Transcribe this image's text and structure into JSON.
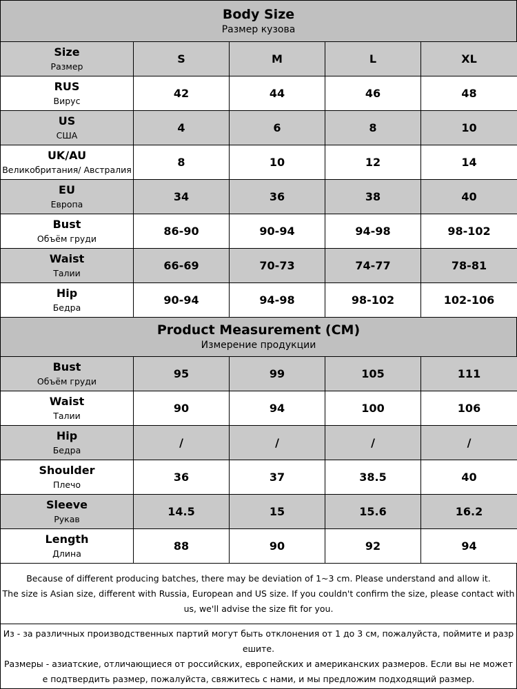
{
  "sections": [
    {
      "title": "Body Size",
      "subtitle": "Размер кузова",
      "header": {
        "label": "Size",
        "sublabel": "Размер",
        "sizes": [
          "S",
          "M",
          "L",
          "XL"
        ]
      },
      "rows": [
        {
          "label": "RUS",
          "sublabel": "Вирус",
          "values": [
            "42",
            "44",
            "46",
            "48"
          ]
        },
        {
          "label": "US",
          "sublabel": "США",
          "values": [
            "4",
            "6",
            "8",
            "10"
          ]
        },
        {
          "label": "UK/AU",
          "sublabel": "Великобритания/ Австралия",
          "values": [
            "8",
            "10",
            "12",
            "14"
          ]
        },
        {
          "label": "EU",
          "sublabel": "Европа",
          "values": [
            "34",
            "36",
            "38",
            "40"
          ]
        },
        {
          "label": "Bust",
          "sublabel": "Объём груди",
          "values": [
            "86-90",
            "90-94",
            "94-98",
            "98-102"
          ]
        },
        {
          "label": "Waist",
          "sublabel": "Талии",
          "values": [
            "66-69",
            "70-73",
            "74-77",
            "78-81"
          ]
        },
        {
          "label": "Hip",
          "sublabel": "Бедра",
          "values": [
            "90-94",
            "94-98",
            "98-102",
            "102-106"
          ]
        }
      ]
    },
    {
      "title": "Product Measurement (CM)",
      "subtitle": "Измерение продукции",
      "rows": [
        {
          "label": "Bust",
          "sublabel": "Объём груди",
          "values": [
            "95",
            "99",
            "105",
            "111"
          ]
        },
        {
          "label": "Waist",
          "sublabel": "Талии",
          "values": [
            "90",
            "94",
            "100",
            "106"
          ]
        },
        {
          "label": "Hip",
          "sublabel": "Бедра",
          "values": [
            "/",
            "/",
            "/",
            "/"
          ]
        },
        {
          "label": "Shoulder",
          "sublabel": "Плечо",
          "values": [
            "36",
            "37",
            "38.5",
            "40"
          ]
        },
        {
          "label": "Sleeve",
          "sublabel": "Рукав",
          "values": [
            "14.5",
            "15",
            "15.6",
            "16.2"
          ]
        },
        {
          "label": "Length",
          "sublabel": "Длина",
          "values": [
            "88",
            "90",
            "92",
            "94"
          ]
        }
      ]
    }
  ],
  "notes": [
    [
      "Because of different producing batches, there may be deviation of 1~3 cm. Please understand and allow it.",
      "The size is Asian size, different with Russia, European and US size. If you couldn't confirm the size, please contact with us, we'll advise the size fit for you."
    ],
    [
      "Из - за различных производственных партий могут быть отклонения от 1 до 3 см, пожалуйста, поймите и разрешите.",
      "Размеры - азиатские, отличающиеся от российских, европейских и американских размеров. Если вы не можете подтвердить размер, пожалуйста, свяжитесь с нами, и мы предложим подходящий размер."
    ]
  ]
}
